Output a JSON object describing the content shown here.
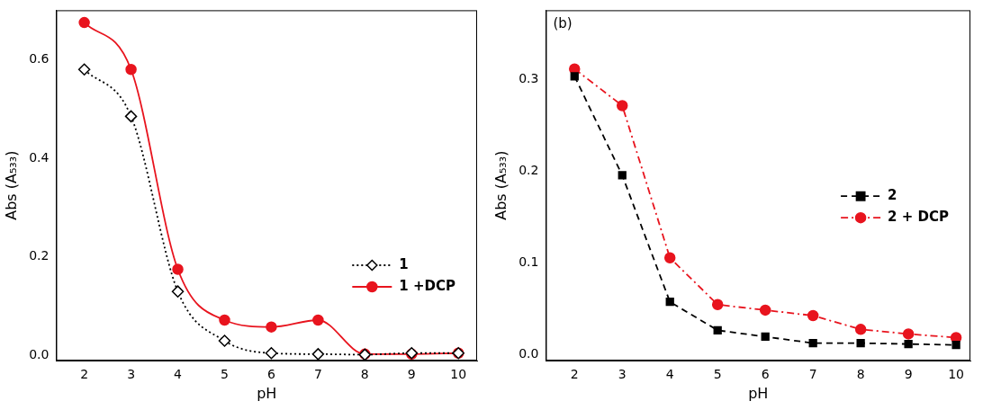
{
  "chart_data": [
    {
      "type": "line",
      "x_label": "pH",
      "y_label": "Abs (A₅₃₃)",
      "x": [
        2,
        3,
        4,
        5,
        6,
        7,
        8,
        9,
        10
      ],
      "xlim": [
        1.4,
        10.4
      ],
      "xticks": [
        2,
        3,
        4,
        5,
        6,
        7,
        8,
        9,
        10
      ],
      "ylim": [
        -0.01,
        0.7
      ],
      "yticks": [
        {
          "value": 0,
          "label": "0.0"
        },
        {
          "value": 0.2,
          "label": "0.2"
        },
        {
          "value": 0.4,
          "label": "0.4"
        },
        {
          "value": 0.6,
          "label": "0.6"
        }
      ],
      "grid": false,
      "legend": "lower right",
      "series": [
        {
          "name": "1",
          "color": "#000000",
          "marker": "open_diamond",
          "line_style": "dotted",
          "values": [
            0.58,
            0.485,
            0.13,
            0.03,
            0.005,
            0.003,
            0.002,
            0.005,
            0.005
          ]
        },
        {
          "name": "1 +DCP",
          "color": "#e8141e",
          "marker": "circle",
          "line_style": "solid",
          "values": [
            0.675,
            0.58,
            0.175,
            0.072,
            0.058,
            0.072,
            0.003,
            0.003,
            0.005
          ]
        }
      ]
    },
    {
      "type": "line",
      "title": "(b)",
      "x_label": "pH",
      "y_label": "Abs (A₅₃₃)",
      "x": [
        2,
        3,
        4,
        5,
        6,
        7,
        8,
        9,
        10
      ],
      "xlim": [
        1.4,
        10.3
      ],
      "xticks": [
        2,
        3,
        4,
        5,
        6,
        7,
        8,
        9,
        10
      ],
      "ylim": [
        -0.007,
        0.375
      ],
      "yticks": [
        {
          "value": 0,
          "label": "0.0"
        },
        {
          "value": 0.1,
          "label": "0.1"
        },
        {
          "value": 0.2,
          "label": "0.2"
        },
        {
          "value": 0.3,
          "label": "0.3"
        }
      ],
      "grid": false,
      "legend": "center right",
      "series": [
        {
          "name": "2",
          "color": "#000000",
          "marker": "square",
          "line_style": "dashed",
          "values": [
            0.303,
            0.195,
            0.057,
            0.026,
            0.019,
            0.012,
            0.012,
            0.011,
            0.01
          ]
        },
        {
          "name": "2 + DCP",
          "color": "#e8141e",
          "marker": "circle",
          "line_style": "dashdot",
          "values": [
            0.311,
            0.271,
            0.105,
            0.054,
            0.048,
            0.042,
            0.027,
            0.022,
            0.018
          ]
        }
      ]
    }
  ]
}
